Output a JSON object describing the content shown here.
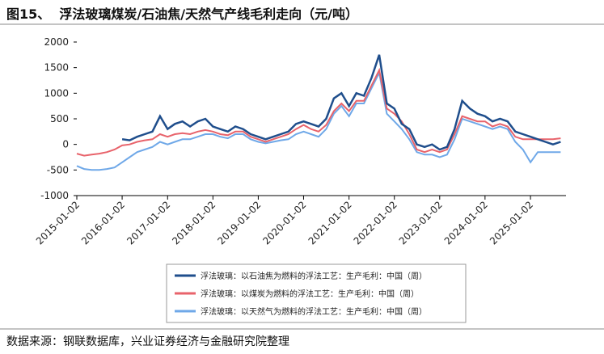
{
  "title": "图15、  浮法玻璃煤炭/石油焦/天然气产线毛利走向（元/吨）",
  "source": "数据来源：钢联数据库，兴业证券经济与金融研究院整理",
  "chart_data": {
    "type": "line",
    "x": [
      "2015-01-02",
      "2015-03-02",
      "2015-05-02",
      "2015-07-02",
      "2015-09-02",
      "2015-11-02",
      "2016-01-02",
      "2016-03-02",
      "2016-05-02",
      "2016-07-02",
      "2016-09-02",
      "2016-11-02",
      "2017-01-02",
      "2017-03-02",
      "2017-05-02",
      "2017-07-02",
      "2017-09-02",
      "2017-11-02",
      "2018-01-02",
      "2018-03-02",
      "2018-05-02",
      "2018-07-02",
      "2018-09-02",
      "2018-11-02",
      "2019-01-02",
      "2019-03-02",
      "2019-05-02",
      "2019-07-02",
      "2019-09-02",
      "2019-11-02",
      "2020-01-02",
      "2020-03-02",
      "2020-05-02",
      "2020-07-02",
      "2020-09-02",
      "2020-11-02",
      "2021-01-02",
      "2021-03-02",
      "2021-05-02",
      "2021-07-02",
      "2021-09-02",
      "2021-11-02",
      "2022-01-02",
      "2022-03-02",
      "2022-05-02",
      "2022-07-02",
      "2022-09-02",
      "2022-11-02",
      "2023-01-02",
      "2023-03-02",
      "2023-05-02",
      "2023-07-02",
      "2023-09-02",
      "2023-11-02",
      "2024-01-02",
      "2024-03-02",
      "2024-05-02",
      "2024-07-02",
      "2024-09-02",
      "2024-11-02",
      "2025-01-02",
      "2025-03-02",
      "2025-05-02",
      "2025-07-02",
      "2025-09-02"
    ],
    "series": [
      {
        "name": "浮法玻璃：以石油焦为燃料的浮法工艺：生产毛利：中国（周）",
        "color": "#1f4e8c",
        "values": [
          null,
          null,
          null,
          null,
          null,
          null,
          100,
          80,
          150,
          200,
          250,
          550,
          300,
          400,
          450,
          350,
          450,
          500,
          350,
          300,
          250,
          350,
          300,
          200,
          150,
          100,
          150,
          200,
          250,
          400,
          450,
          400,
          350,
          500,
          900,
          1000,
          750,
          1000,
          950,
          1300,
          1750,
          800,
          700,
          400,
          300,
          0,
          -50,
          0,
          -100,
          -50,
          300,
          850,
          700,
          600,
          550,
          450,
          500,
          450,
          250,
          200,
          150,
          100,
          50,
          0,
          50
        ]
      },
      {
        "name": "浮法玻璃：以煤炭为燃料的浮法工艺：生产毛利：中国（周）",
        "color": "#e8636b",
        "values": [
          -180,
          -220,
          -200,
          -180,
          -150,
          -100,
          -20,
          0,
          50,
          80,
          100,
          200,
          150,
          200,
          220,
          200,
          250,
          280,
          250,
          200,
          180,
          250,
          250,
          150,
          100,
          50,
          100,
          150,
          200,
          300,
          380,
          300,
          250,
          380,
          650,
          800,
          650,
          850,
          850,
          1150,
          1450,
          700,
          600,
          450,
          200,
          -100,
          -150,
          -100,
          -150,
          -100,
          200,
          550,
          500,
          450,
          450,
          350,
          400,
          350,
          150,
          100,
          100,
          100,
          100,
          100,
          120
        ]
      },
      {
        "name": "浮法玻璃：以天然气为燃料的浮法工艺：生产毛利：中国（周）",
        "color": "#6fa8e8",
        "values": [
          -420,
          -480,
          -500,
          -500,
          -480,
          -450,
          -350,
          -250,
          -150,
          -100,
          -50,
          50,
          0,
          50,
          100,
          100,
          150,
          200,
          200,
          150,
          120,
          200,
          200,
          100,
          50,
          20,
          50,
          80,
          100,
          200,
          250,
          200,
          150,
          300,
          600,
          750,
          550,
          800,
          800,
          1100,
          1400,
          600,
          450,
          300,
          100,
          -150,
          -200,
          -200,
          -250,
          -200,
          100,
          500,
          450,
          400,
          350,
          300,
          350,
          300,
          50,
          -100,
          -350,
          -150,
          -150,
          -150,
          -150
        ]
      }
    ],
    "xlim": [
      "2015-01-02",
      "2025-10-15"
    ],
    "xticks": [
      "2015-01-02",
      "2016-01-02",
      "2017-01-02",
      "2018-01-02",
      "2019-01-02",
      "2020-01-02",
      "2021-01-02",
      "2022-01-02",
      "2023-01-02",
      "2024-01-02",
      "2025-01-02"
    ],
    "ylim": [
      -1000,
      2000
    ],
    "yticks": [
      -1000,
      -500,
      0,
      500,
      1000,
      1500,
      2000
    ],
    "grid": false
  }
}
